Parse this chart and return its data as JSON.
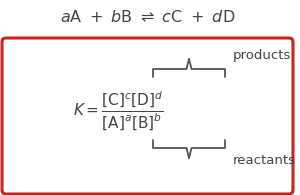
{
  "box_color": "#cc2222",
  "text_color": "#444444",
  "bg_color": "#ffffff",
  "title_fontsize": 11.5,
  "eq_fontsize": 11,
  "label_fontsize": 9.5,
  "brace_color": "#555555"
}
